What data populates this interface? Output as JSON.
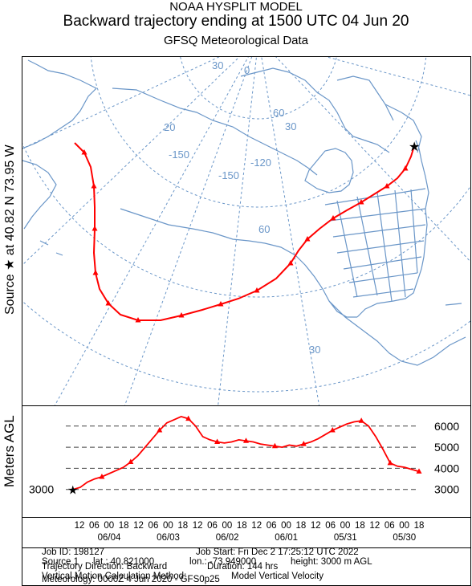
{
  "header": {
    "line1": "NOAA HYSPLIT MODEL",
    "line2": "Backward trajectory ending at 1500 UTC 04 Jun 20",
    "line3": "GFSQ Meteorological Data"
  },
  "side_labels": {
    "source": "Source ★ at 40.82 N 73.95 W",
    "height_axis": "Meters AGL"
  },
  "map": {
    "grid_labels": [
      "30",
      "0",
      "20",
      "-150",
      "-150",
      "60",
      "60",
      "-120",
      "30",
      "30",
      "-60",
      "-120"
    ],
    "colors": {
      "land_outline": "#6a96c8",
      "graticule": "#6a96c8",
      "trajectory": "#ff0000"
    }
  },
  "chart_data": {
    "type": "line",
    "title": "",
    "xlabel": "",
    "ylabel": "Meters AGL",
    "start_height_label": "3000",
    "y_ticks": [
      "6000",
      "5000",
      "4000",
      "3000"
    ],
    "ylim": [
      2800,
      6600
    ],
    "x_hour_labels": [
      "12",
      "06",
      "00",
      "18",
      "12",
      "06",
      "00",
      "18",
      "12",
      "06",
      "00",
      "18",
      "12",
      "06",
      "00",
      "18",
      "12",
      "06",
      "00",
      "18",
      "12",
      "06",
      "00",
      "18"
    ],
    "x_date_labels": [
      "06/04",
      "06/03",
      "06/02",
      "06/01",
      "05/31",
      "05/30"
    ],
    "series": [
      {
        "x_hours_back": [
          0,
          3,
          6,
          9,
          12,
          15,
          18,
          21,
          24,
          27,
          30,
          33,
          36,
          39,
          42,
          45,
          48,
          51,
          54,
          57,
          60,
          63,
          66,
          69,
          72,
          75,
          78,
          81,
          84,
          87,
          90,
          93,
          96,
          99,
          102,
          105,
          108,
          111,
          114,
          117,
          120,
          123,
          126,
          129,
          132,
          135,
          138,
          141,
          144
        ],
        "values": [
          3000,
          3100,
          3350,
          3500,
          3600,
          3750,
          3900,
          4050,
          4300,
          4600,
          5000,
          5400,
          5800,
          6150,
          6300,
          6450,
          6350,
          6000,
          5500,
          5350,
          5250,
          5200,
          5250,
          5350,
          5300,
          5250,
          5150,
          5100,
          5050,
          5000,
          5100,
          5050,
          5150,
          5250,
          5400,
          5600,
          5800,
          5950,
          6100,
          6200,
          6250,
          6000,
          5500,
          4900,
          4250,
          4100,
          4050,
          3950,
          3850
        ]
      }
    ]
  },
  "info": {
    "job_id": "Job ID: 198127",
    "job_start": "Job Start: Fri Dec  2 17:25:12 UTC 2022",
    "source_label": "Source 1",
    "lat": "lat.: 40.821000",
    "lon": "lon.: -73.949000",
    "height": "height: 3000 m AGL",
    "direction": "Trajectory Direction: Backward",
    "duration": "Duration: 144 hrs",
    "vertical_method_label": "Vertical Motion Calculation Method:",
    "vertical_method_value": "Model Vertical Velocity",
    "meteorology": "Meteorology: 0000Z  4 Jun 2020 - GFS0p25"
  }
}
